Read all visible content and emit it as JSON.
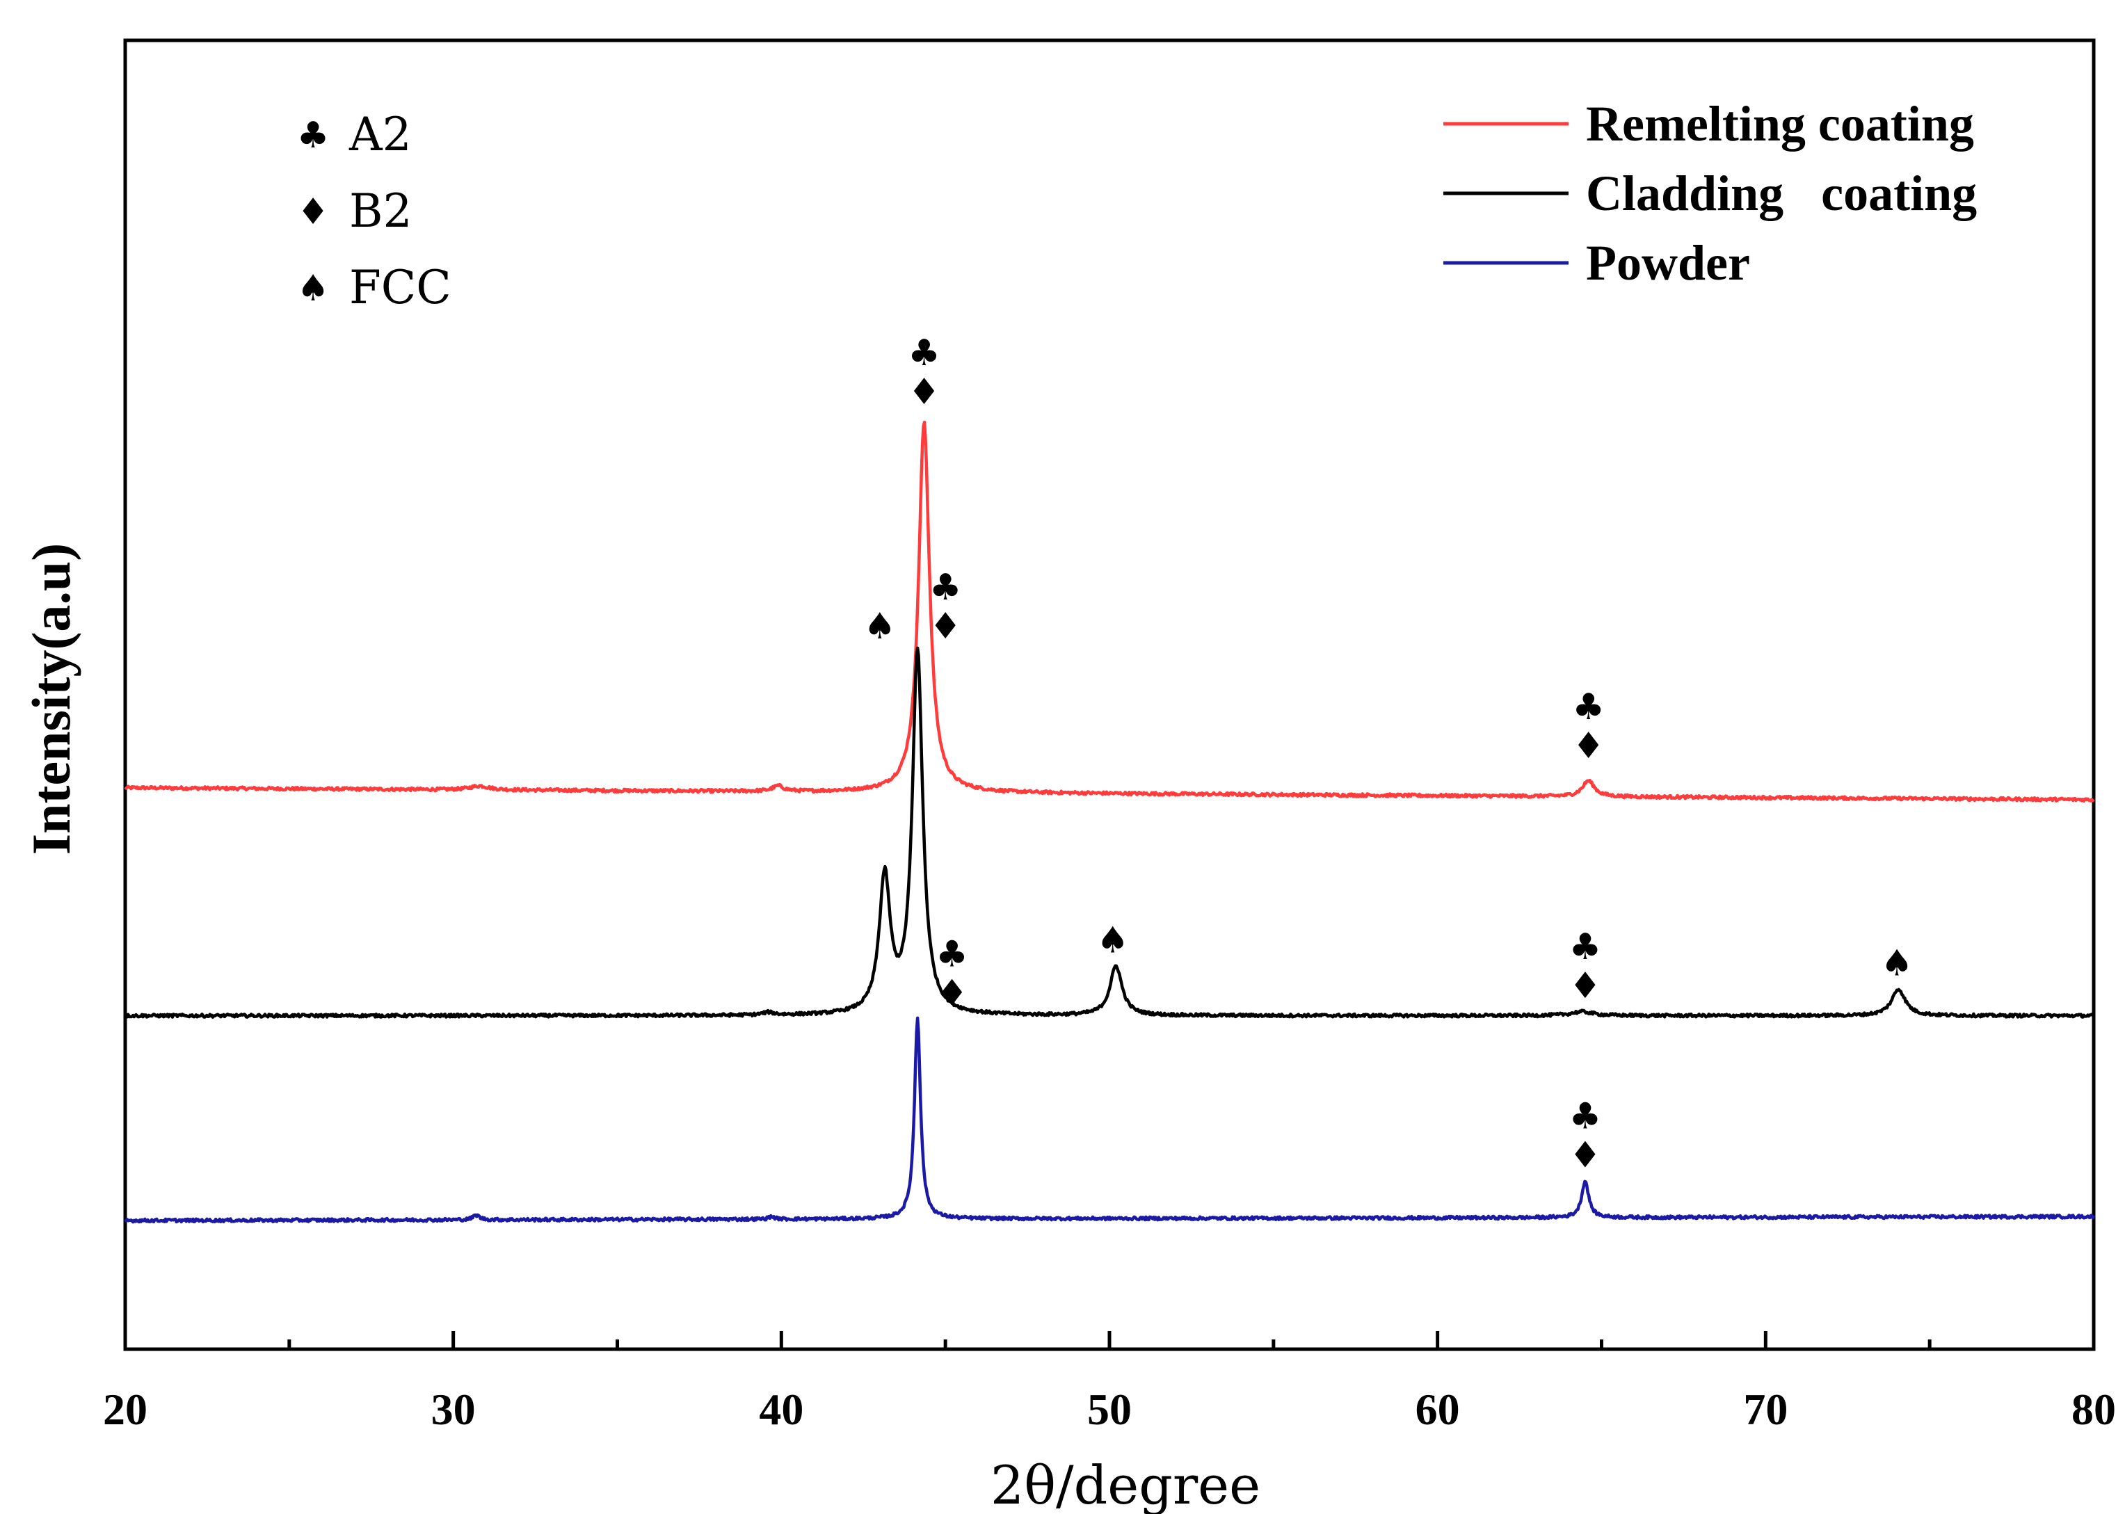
{
  "chart_data": {
    "type": "line",
    "title": "",
    "xlabel": "2θ/degree",
    "ylabel": "Intensity(a.u)",
    "xlim": [
      20,
      80
    ],
    "xticks": [
      20,
      30,
      40,
      50,
      60,
      70,
      80
    ],
    "xminor": [
      25,
      35,
      45,
      55,
      65,
      75
    ],
    "yticks_visible": false,
    "grid": false,
    "legend_position": "top-right",
    "phase_legend_position": "top-left",
    "series": [
      {
        "name": "Remelting coating",
        "color": "#ff3b3b",
        "offset": 0.62,
        "baseline": 0.035,
        "baseline_slope": -0.0003,
        "peaks": [
          {
            "x": 30.8,
            "h": 0.006,
            "w": 0.35
          },
          {
            "x": 39.9,
            "h": 0.008,
            "w": 0.2
          },
          {
            "x": 44.35,
            "h": 0.56,
            "w": 0.2
          },
          {
            "x": 64.6,
            "h": 0.024,
            "w": 0.22
          }
        ],
        "markers": [
          {
            "x": 44.35,
            "symbols": [
              "♣",
              "♦"
            ]
          },
          {
            "x": 64.6,
            "symbols": [
              "♣",
              "♦"
            ]
          }
        ]
      },
      {
        "name": "Cladding   coating",
        "color": "#000000",
        "offset": 0.31,
        "baseline": 0.0,
        "baseline_slope": 0.0,
        "peaks": [
          {
            "x": 39.6,
            "h": 0.004,
            "w": 0.2
          },
          {
            "x": 43.15,
            "h": 0.205,
            "w": 0.2
          },
          {
            "x": 44.15,
            "h": 0.55,
            "w": 0.19
          },
          {
            "x": 50.2,
            "h": 0.075,
            "w": 0.22
          },
          {
            "x": 64.4,
            "h": 0.006,
            "w": 0.4
          },
          {
            "x": 74.05,
            "h": 0.04,
            "w": 0.25
          }
        ],
        "markers": [
          {
            "x": 45.0,
            "symbols": [
              "♣",
              "♦"
            ]
          },
          {
            "x": 43.0,
            "symbols": [
              "♠"
            ]
          },
          {
            "x": 50.1,
            "symbols": [
              "♠"
            ]
          },
          {
            "x": 64.5,
            "symbols": [
              "♣",
              "♦"
            ]
          },
          {
            "x": 74.0,
            "symbols": [
              "♠"
            ]
          }
        ]
      },
      {
        "name": "Powder",
        "color": "#1a1aa6",
        "offset": 0.0,
        "baseline": 0.0,
        "baseline_slope": 0.0001,
        "peaks": [
          {
            "x": 30.7,
            "h": 0.007,
            "w": 0.12
          },
          {
            "x": 39.7,
            "h": 0.004,
            "w": 0.1
          },
          {
            "x": 44.15,
            "h": 0.305,
            "w": 0.11
          },
          {
            "x": 64.5,
            "h": 0.055,
            "w": 0.13
          }
        ],
        "markers": [
          {
            "x": 45.2,
            "symbols": [
              "♣",
              "♦"
            ]
          },
          {
            "x": 64.5,
            "symbols": [
              "♣",
              "♦"
            ]
          }
        ]
      }
    ],
    "phase_legend": [
      {
        "symbol": "♣",
        "label": "A2"
      },
      {
        "symbol": "♦",
        "label": "B2"
      },
      {
        "symbol": "♠",
        "label": "FCC"
      }
    ]
  }
}
